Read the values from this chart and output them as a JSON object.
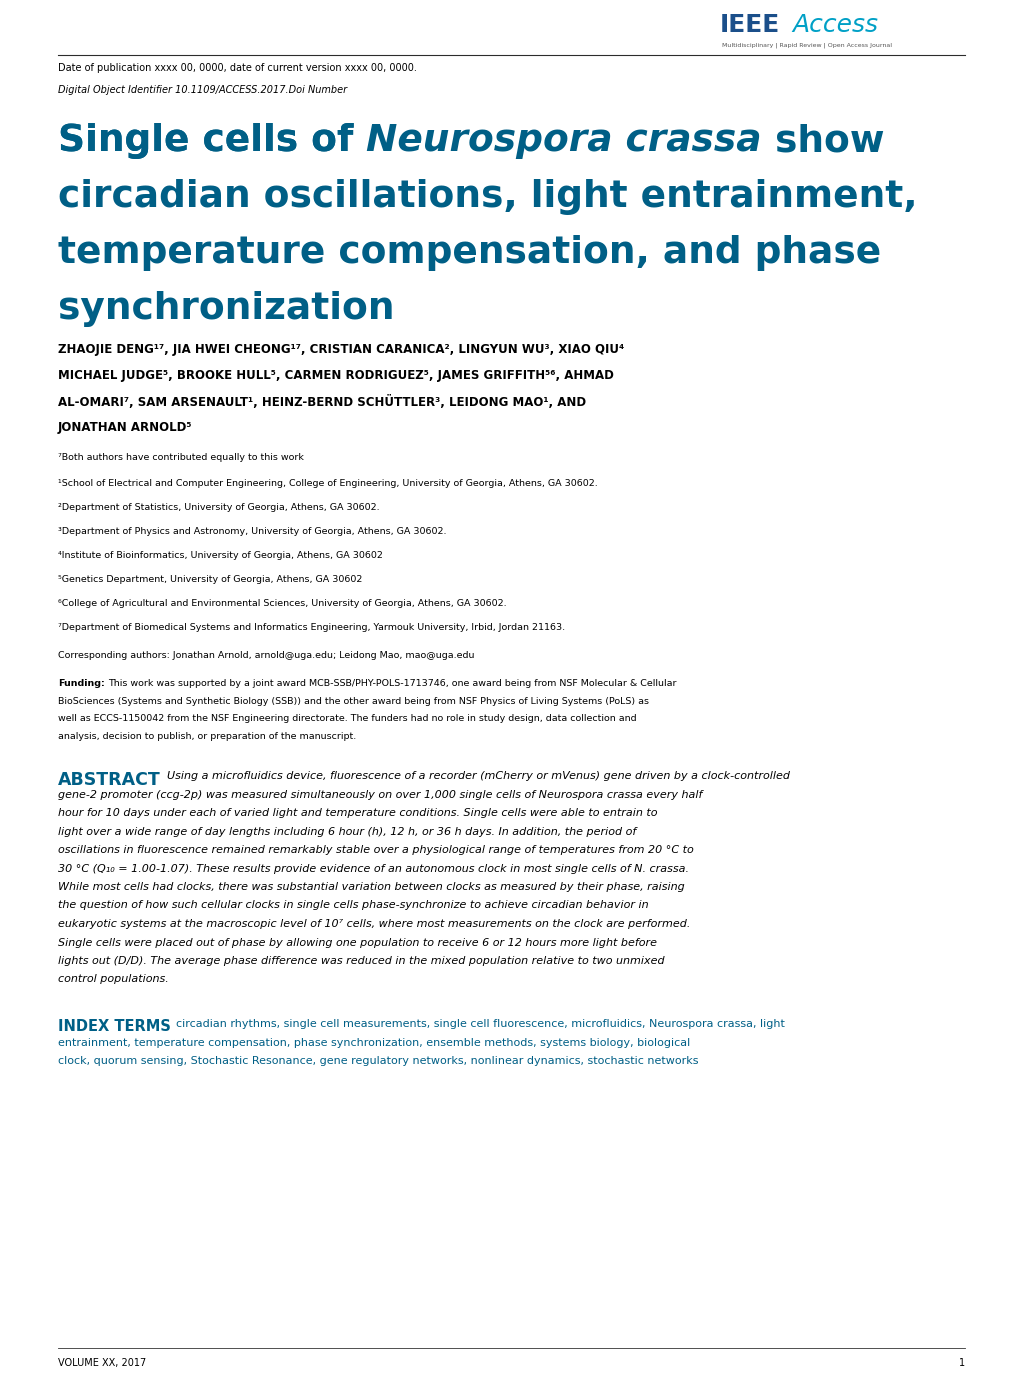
{
  "page_width": 10.2,
  "page_height": 13.86,
  "bg_color": "#ffffff",
  "ieee_blue_dark": "#005f86",
  "ieee_blue_light": "#00a0c6",
  "text_black": "#000000",
  "text_dark": "#1a1a1a",
  "pub_date_text": "Date of publication xxxx 00, 0000, date of current version xxxx 00, 0000.",
  "doi_text": "Digital Object Identifier 10.1109/ACCESS.2017.Doi Number",
  "title_line1_a": "Single cells of ",
  "title_line1_b": "Neurospora crassa",
  "title_line1_c": " show",
  "title_line2": "circadian oscillations, light entrainment,",
  "title_line3": "temperature compensation, and phase",
  "title_line4": "synchronization",
  "author_line1": "ZHAOJIE DENG¹⁷, JIA HWEI CHEONG¹⁷, CRISTIAN CARANICA², LINGYUN WU³, XIAO QIU⁴",
  "author_line2": "MICHAEL JUDGE⁵, BROOKE HULL⁵, CARMEN RODRIGUEZ⁵, JAMES GRIFFITH⁵⁶, AHMAD",
  "author_line3": "AL-OMARI⁷, SAM ARSENAULT¹, HEINZ-BERND SCHÜTTLER³, LEIDONG MAO¹, AND",
  "author_line4": "JONATHAN ARNOLD⁵",
  "footnote_7": "⁷Both authors have contributed equally to this work",
  "affil_1": "¹School of Electrical and Computer Engineering, College of Engineering, University of Georgia, Athens, GA 30602.",
  "affil_2": "²Department of Statistics, University of Georgia, Athens, GA 30602.",
  "affil_3": "³Department of Physics and Astronomy, University of Georgia, Athens, GA 30602.",
  "affil_4": "⁴Institute of Bioinformatics, University of Georgia, Athens, GA 30602",
  "affil_5": "⁵Genetics Department, University of Georgia, Athens, GA 30602",
  "affil_6": "⁶College of Agricultural and Environmental Sciences, University of Georgia, Athens, GA 30602.",
  "affil_7": "⁷Department of Biomedical Systems and Informatics Engineering, Yarmouk University, Irbid, Jordan 21163.",
  "corresponding": "Corresponding authors: Jonathan Arnold, arnold@uga.edu; Leidong Mao, mao@uga.edu",
  "funding_label": "Funding:",
  "funding_body": "This work was supported by a joint award MCB-SSB/PHY-POLS-1713746, one award being from NSF Molecular & Cellular BioSciences (Systems and Synthetic Biology (SSB)) and the other award being from NSF Physics of Living Systems (PoLS) as well as ECCS-1150042 from the NSF Engineering directorate. The funders had no role in study design, data collection and analysis, decision to publish, or preparation of the manuscript.",
  "abstract_label": "ABSTRACT",
  "abstract_body": "Using a microfluidics device, fluorescence of a recorder (mCherry or mVenus) gene driven by a clock-controlled gene-2 promoter (ccg-2p) was measured simultaneously on over 1,000 single cells of Neurospora crassa every half hour for 10 days under each of varied light and temperature conditions.  Single cells were able to entrain to light over a wide range of day lengths including 6 hour (h), 12 h, or 36 h days.  In addition, the period of oscillations in fluorescence remained remarkably stable over a physiological range of temperatures from 20 °C to 30 °C (Q₁₀ = 1.00-1.07).  These results provide evidence of an autonomous clock in most single cells of N. crassa.  While most cells had clocks, there was substantial variation between clocks as measured by their phase, raising the question of how such cellular clocks in single cells phase-synchronize to achieve circadian behavior in eukaryotic systems at the macroscopic level of 10⁷ cells, where most measurements on the clock are performed.  Single cells were placed out of phase by allowing one population to receive 6 or 12 hours more light before lights out (D/D).  The average phase difference was reduced in the mixed population relative to two unmixed control populations.",
  "index_label": "INDEX TERMS",
  "index_body": "circadian rhythms, single cell measurements, single cell fluorescence, microfluidics, Neurospora crassa, light entrainment, temperature compensation, phase synchronization, ensemble methods, systems biology, biological clock, quorum sensing, Stochastic Resonance, gene regulatory networks, nonlinear dynamics, stochastic networks",
  "volume_text": "VOLUME XX, 2017",
  "page_num": "1",
  "ieee_logo_text1": "IEEE",
  "ieee_logo_text2": "Access",
  "ieee_tagline": "Multidisciplinary | Rapid Review | Open Access Journal"
}
